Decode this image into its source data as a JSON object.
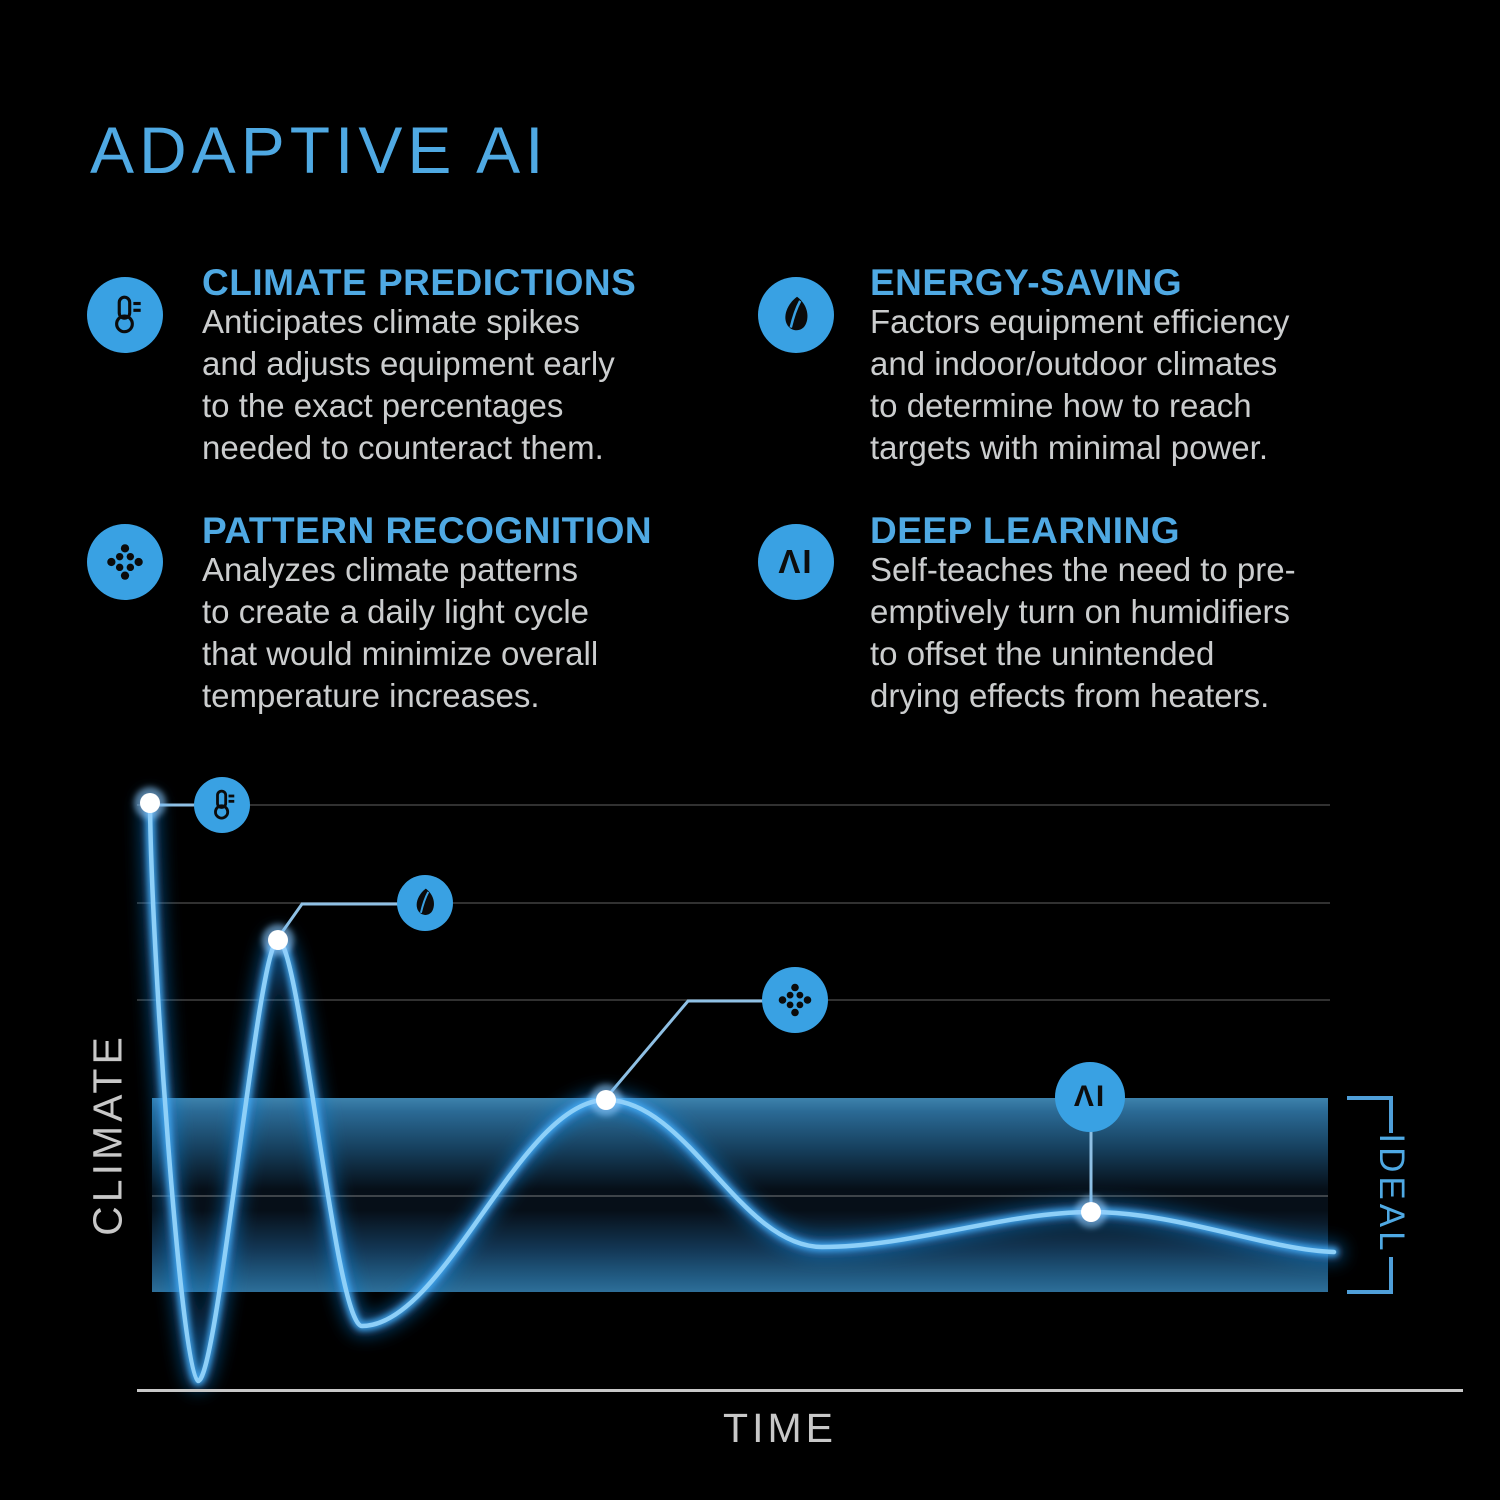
{
  "page": {
    "title": "ADAPTIVE AI"
  },
  "colors": {
    "background": "#000000",
    "accent_blue": "#4fa9e3",
    "icon_circle_blue": "#39a1e3",
    "body_text_gray": "#cbcdce",
    "axis_gray": "#c8c8c8",
    "curve_core_blue": "#8ed0f8",
    "curve_glow_blue": "#1e8ce6",
    "band_edge_blue": "#2e6f99"
  },
  "features": [
    {
      "icon": "thermometer-icon",
      "title": "CLIMATE PREDICTIONS",
      "body": "Anticipates climate spikes\nand adjusts equipment early\nto the exact percentages\nneeded to counteract them."
    },
    {
      "icon": "leaf-icon",
      "title": "ENERGY-SAVING",
      "body": "Factors equipment efficiency\nand indoor/outdoor climates\nto determine how to reach\ntargets with minimal power."
    },
    {
      "icon": "network-dots-icon",
      "title": "PATTERN RECOGNITION",
      "body": "Analyzes climate patterns\nto create a daily light cycle\nthat would minimize overall\ntemperature increases."
    },
    {
      "icon": "ai-icon",
      "icon_text": "ΛI",
      "title": "DEEP LEARNING",
      "body": "Self-teaches the need to pre-\nemptively turn on humidifiers\nto offset the unintended\ndrying effects from heaters."
    }
  ],
  "chart": {
    "ylabel": "CLIMATE",
    "xlabel": "TIME",
    "band_label": "IDEAL",
    "ai_marker_text": "ΛI"
  },
  "chart_data": {
    "type": "line",
    "title": "",
    "xlabel": "TIME",
    "ylabel": "CLIMATE",
    "x_axis": {
      "range": [
        0,
        1
      ],
      "ticks": [],
      "tick_labels": []
    },
    "y_axis": {
      "range": [
        0,
        110
      ],
      "ticks": [],
      "gridlines_at": [
        100,
        83.3,
        66.7,
        33.3
      ],
      "grid": true
    },
    "ideal_band": {
      "from": 17,
      "to": 50,
      "label": "IDEAL"
    },
    "series": [
      {
        "name": "climate",
        "style": "glowing damped oscillation converging into ideal band",
        "points": [
          [
            0.0,
            100
          ],
          [
            0.064,
            1.5
          ],
          [
            0.108,
            77
          ],
          [
            0.178,
            11
          ],
          [
            0.386,
            50
          ],
          [
            0.568,
            25
          ],
          [
            0.797,
            30.5
          ],
          [
            1.0,
            24
          ]
        ]
      }
    ],
    "markers": [
      {
        "label": "climate-predictions",
        "icon": "thermometer-icon",
        "point": [
          0.0,
          100
        ]
      },
      {
        "label": "energy-saving",
        "icon": "leaf-icon",
        "point": [
          0.108,
          77
        ]
      },
      {
        "label": "pattern-recognition",
        "icon": "network-dots-icon",
        "point": [
          0.386,
          50
        ]
      },
      {
        "label": "deep-learning",
        "icon": "ai-icon",
        "point": [
          0.797,
          30.5
        ]
      }
    ],
    "legend": false
  }
}
